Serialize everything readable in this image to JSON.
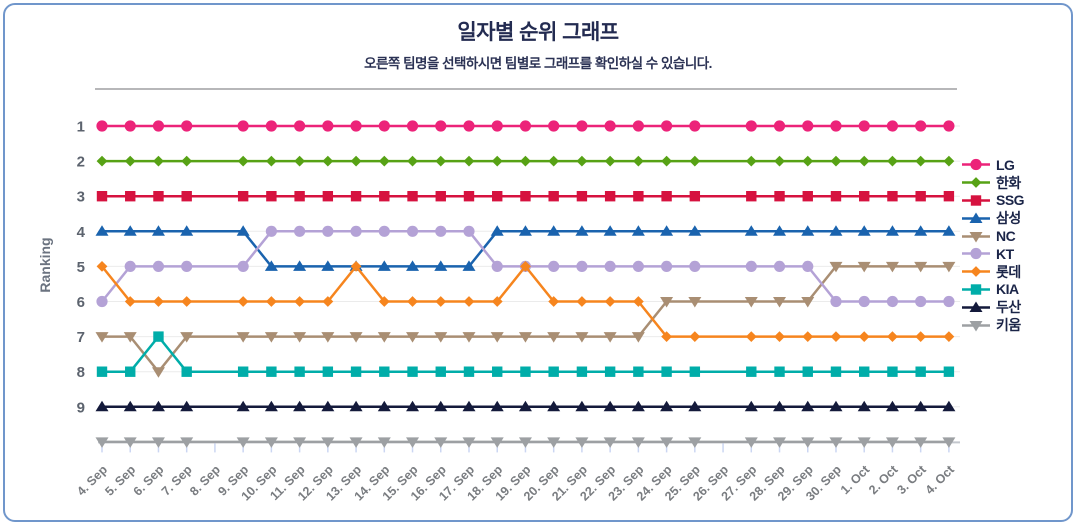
{
  "page": {
    "title": "일자별 순위 그래프",
    "subtitle": "오른쪽 팀명을 선택하시면 팀별로 그래프를 확인하실 수 있습니다."
  },
  "colors": {
    "border": "#7096CB",
    "title": "#232B51",
    "subtitle": "#2B3254",
    "divider": "#B7B7B9",
    "grid": "#EBEBEB",
    "axis_line": "#C3C7CD",
    "tick": "#CBD6F2",
    "y_tick_label": "#5C636E",
    "x_tick_label": "#797C80",
    "axis_title": "#6B7380",
    "legend_text": "#1B2548"
  },
  "chart_data": {
    "type": "line",
    "title": "일자별 순위 그래프",
    "xlabel": "",
    "ylabel": "Ranking",
    "y_ticks": [
      1,
      2,
      3,
      4,
      5,
      6,
      7,
      8,
      9
    ],
    "y_axis_note": "rank 1 at top, rank 10 bottom row unlabeled",
    "grid": true,
    "legend_position": "right",
    "no_marker_dates": [
      "8. Sep",
      "26. Sep"
    ],
    "x": [
      "4. Sep",
      "5. Sep",
      "6. Sep",
      "7. Sep",
      "8. Sep",
      "9. Sep",
      "10. Sep",
      "11. Sep",
      "12. Sep",
      "13. Sep",
      "14. Sep",
      "15. Sep",
      "16. Sep",
      "17. Sep",
      "18. Sep",
      "19. Sep",
      "20. Sep",
      "21. Sep",
      "22. Sep",
      "23. Sep",
      "24. Sep",
      "25. Sep",
      "26. Sep",
      "27. Sep",
      "28. Sep",
      "29. Sep",
      "30. Sep",
      "1. Oct",
      "2. Oct",
      "3. Oct",
      "4. Oct"
    ],
    "series": [
      {
        "name": "LG",
        "color": "#EC2379",
        "marker": "circle",
        "values": [
          1,
          1,
          1,
          1,
          1,
          1,
          1,
          1,
          1,
          1,
          1,
          1,
          1,
          1,
          1,
          1,
          1,
          1,
          1,
          1,
          1,
          1,
          1,
          1,
          1,
          1,
          1,
          1,
          1,
          1,
          1
        ]
      },
      {
        "name": "한화",
        "color": "#57A215",
        "marker": "diamond",
        "values": [
          2,
          2,
          2,
          2,
          2,
          2,
          2,
          2,
          2,
          2,
          2,
          2,
          2,
          2,
          2,
          2,
          2,
          2,
          2,
          2,
          2,
          2,
          2,
          2,
          2,
          2,
          2,
          2,
          2,
          2,
          2
        ]
      },
      {
        "name": "SSG",
        "color": "#D6123F",
        "marker": "square",
        "values": [
          3,
          3,
          3,
          3,
          3,
          3,
          3,
          3,
          3,
          3,
          3,
          3,
          3,
          3,
          3,
          3,
          3,
          3,
          3,
          3,
          3,
          3,
          3,
          3,
          3,
          3,
          3,
          3,
          3,
          3,
          3
        ]
      },
      {
        "name": "삼성",
        "color": "#1A63AE",
        "marker": "triangle-up",
        "values": [
          4,
          4,
          4,
          4,
          4,
          4,
          5,
          5,
          5,
          5,
          5,
          5,
          5,
          5,
          4,
          4,
          4,
          4,
          4,
          4,
          4,
          4,
          4,
          4,
          4,
          4,
          4,
          4,
          4,
          4,
          4
        ]
      },
      {
        "name": "NC",
        "color": "#A98E73",
        "marker": "triangle-down",
        "values": [
          7,
          7,
          8,
          7,
          7,
          7,
          7,
          7,
          7,
          7,
          7,
          7,
          7,
          7,
          7,
          7,
          7,
          7,
          7,
          7,
          6,
          6,
          6,
          6,
          6,
          6,
          5,
          5,
          5,
          5,
          5
        ]
      },
      {
        "name": "KT",
        "color": "#B4A2D6",
        "marker": "circle",
        "values": [
          6,
          5,
          5,
          5,
          5,
          5,
          4,
          4,
          4,
          4,
          4,
          4,
          4,
          4,
          5,
          5,
          5,
          5,
          5,
          5,
          5,
          5,
          5,
          5,
          5,
          5,
          6,
          6,
          6,
          6,
          6
        ]
      },
      {
        "name": "롯데",
        "color": "#F6851E",
        "marker": "diamond",
        "values": [
          5,
          6,
          6,
          6,
          6,
          6,
          6,
          6,
          6,
          5,
          6,
          6,
          6,
          6,
          6,
          5,
          6,
          6,
          6,
          6,
          7,
          7,
          7,
          7,
          7,
          7,
          7,
          7,
          7,
          7,
          7
        ]
      },
      {
        "name": "KIA",
        "color": "#00ADA9",
        "marker": "square",
        "values": [
          8,
          8,
          7,
          8,
          8,
          8,
          8,
          8,
          8,
          8,
          8,
          8,
          8,
          8,
          8,
          8,
          8,
          8,
          8,
          8,
          8,
          8,
          8,
          8,
          8,
          8,
          8,
          8,
          8,
          8,
          8
        ]
      },
      {
        "name": "두산",
        "color": "#141A3B",
        "marker": "triangle-up",
        "values": [
          9,
          9,
          9,
          9,
          9,
          9,
          9,
          9,
          9,
          9,
          9,
          9,
          9,
          9,
          9,
          9,
          9,
          9,
          9,
          9,
          9,
          9,
          9,
          9,
          9,
          9,
          9,
          9,
          9,
          9,
          9
        ]
      },
      {
        "name": "키움",
        "color": "#9DA0A3",
        "marker": "triangle-down",
        "values": [
          10,
          10,
          10,
          10,
          10,
          10,
          10,
          10,
          10,
          10,
          10,
          10,
          10,
          10,
          10,
          10,
          10,
          10,
          10,
          10,
          10,
          10,
          10,
          10,
          10,
          10,
          10,
          10,
          10,
          10,
          10
        ]
      }
    ]
  }
}
